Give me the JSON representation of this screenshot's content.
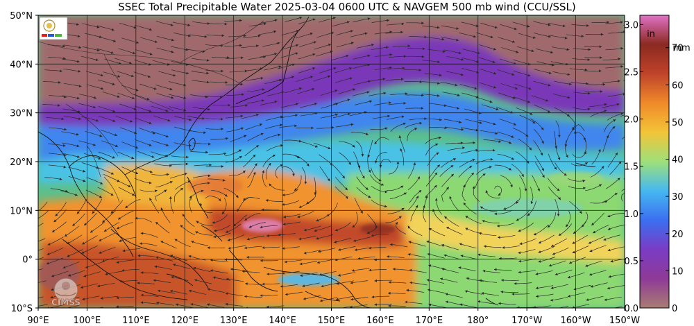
{
  "title": "SSEC Total Precipitable Water  2025-03-04 0600 UTC & NAVGEM 500 mb wind (CCU/SSL)",
  "latitudes": [
    {
      "value": 50,
      "label": "50°N"
    },
    {
      "value": 40,
      "label": "40°N"
    },
    {
      "value": 30,
      "label": "30°N"
    },
    {
      "value": 20,
      "label": "20°N"
    },
    {
      "value": 10,
      "label": "10°N"
    },
    {
      "value": 0,
      "label": "0°"
    },
    {
      "value": -10,
      "label": "10°S"
    }
  ],
  "longitudes": [
    {
      "value": 90,
      "label": "90°E"
    },
    {
      "value": 100,
      "label": "100°E"
    },
    {
      "value": 110,
      "label": "110°E"
    },
    {
      "value": 120,
      "label": "120°E"
    },
    {
      "value": 130,
      "label": "130°E"
    },
    {
      "value": 140,
      "label": "140°E"
    },
    {
      "value": 150,
      "label": "150°E"
    },
    {
      "value": 160,
      "label": "160°E"
    },
    {
      "value": 170,
      "label": "170°E"
    },
    {
      "value": 180,
      "label": "180°"
    },
    {
      "value": 190,
      "label": "170°W"
    },
    {
      "value": 200,
      "label": "160°W"
    },
    {
      "value": 210,
      "label": "150°W"
    }
  ],
  "colorbar": {
    "inch_unit": "in",
    "mm_unit": "mm",
    "inch_ticks": [
      {
        "v": 0.0,
        "label": "0.0"
      },
      {
        "v": 0.5,
        "label": "0.5"
      },
      {
        "v": 1.0,
        "label": "1.0"
      },
      {
        "v": 1.5,
        "label": "1.5"
      },
      {
        "v": 2.0,
        "label": "2.0"
      },
      {
        "v": 2.5,
        "label": "2.5"
      },
      {
        "v": 3.0,
        "label": "3.0"
      }
    ],
    "mm_ticks": [
      {
        "v": 0,
        "label": "0"
      },
      {
        "v": 10,
        "label": "10"
      },
      {
        "v": 20,
        "label": "20"
      },
      {
        "v": 30,
        "label": "30"
      },
      {
        "v": 40,
        "label": "40"
      },
      {
        "v": 50,
        "label": "50"
      },
      {
        "v": 60,
        "label": "60"
      },
      {
        "v": 70,
        "label": "70"
      }
    ],
    "max_mm": 78.7,
    "colors": [
      "#a87d74",
      "#8e3a96",
      "#7a3cc4",
      "#3b6ff0",
      "#46b8f0",
      "#9ee07a",
      "#f2c438",
      "#f08a2a",
      "#c0432a",
      "#8a2a20",
      "#e072c6"
    ]
  },
  "logos": {
    "cimss": "CIMSS"
  }
}
